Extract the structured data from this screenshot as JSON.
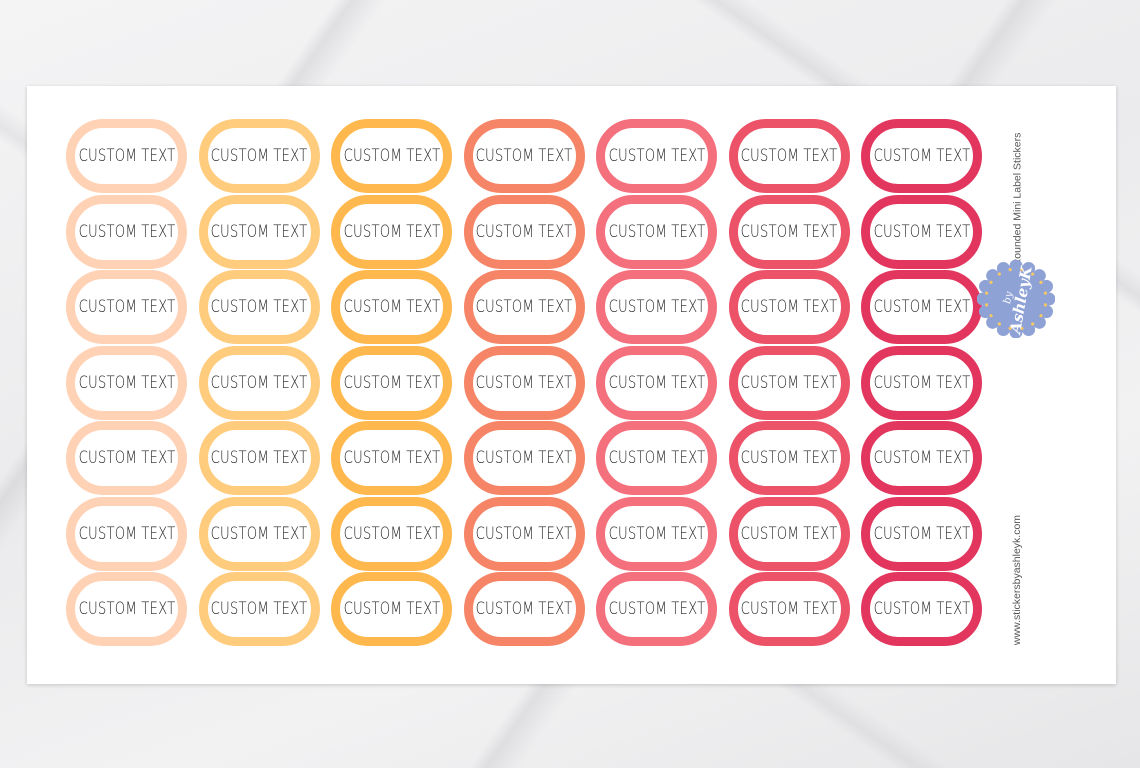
{
  "sheet": {
    "side_title": "Custom Text Rounded Mini Label Stickers",
    "side_url": "www.stickersbyashleyk.com",
    "logo": {
      "by": "by",
      "name": "AshleyK",
      "color": "#8fa2d6"
    }
  },
  "label_text": "CUSTOM TEXT",
  "columns": [
    {
      "color": "#ffd2b5"
    },
    {
      "color": "#ffcc7e"
    },
    {
      "color": "#ffb84d"
    },
    {
      "color": "#f58566"
    },
    {
      "color": "#f4707d"
    },
    {
      "color": "#ec5268"
    },
    {
      "color": "#e2365e"
    }
  ],
  "rows": 7
}
